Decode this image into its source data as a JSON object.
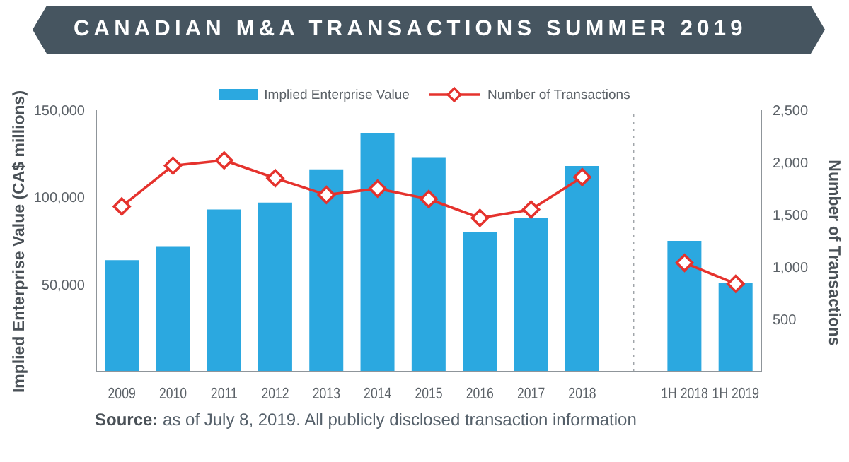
{
  "chart_data": {
    "type": "bar",
    "title": "CANADIAN M&A TRANSACTIONS SUMMER 2019",
    "ylabel": "Implied Enterprise Value (CA$ millions)",
    "y2label": "Number of Transactions",
    "annotations": [
      "Source: as of July 8, 2019. All publicly disclosed transaction information"
    ],
    "categories": [
      "2009",
      "2010",
      "2011",
      "2012",
      "2013",
      "2014",
      "2015",
      "2016",
      "2017",
      "2018",
      null,
      "1H 2018",
      "1H 2019"
    ],
    "series": [
      {
        "name": "Implied Enterprise Value",
        "color": "#2ba8e0",
        "values": [
          64000,
          72000,
          93000,
          97000,
          116000,
          137000,
          123000,
          80000,
          88000,
          118000,
          null,
          75000,
          51000
        ]
      },
      {
        "name": "Number of Transactions",
        "type": "line",
        "axis": "y2",
        "color": "#e5322d",
        "values": [
          1580,
          1970,
          2020,
          1850,
          1690,
          1750,
          1650,
          1470,
          1550,
          1860,
          null,
          1040,
          840
        ]
      }
    ],
    "ylim": [
      0,
      150000
    ],
    "yticks": [
      {
        "value": 50000,
        "label": "50,000"
      },
      {
        "value": 100000,
        "label": "100,000"
      },
      {
        "value": 150000,
        "label": "150,000"
      }
    ],
    "y2lim": [
      0,
      2500
    ],
    "y2ticks": [
      500,
      {
        "value": 1000,
        "label": "1,000"
      },
      {
        "value": 1500,
        "label": "1,500"
      },
      {
        "value": 2000,
        "label": "2,000"
      },
      {
        "value": 2500,
        "label": "2,500"
      }
    ],
    "ref_lines": [
      {
        "axis": "x",
        "value": null,
        "color": "#a0a5aa",
        "line_style": "dotted"
      }
    ],
    "legend": "top",
    "marker": "diamond",
    "line_style": "solid"
  }
}
